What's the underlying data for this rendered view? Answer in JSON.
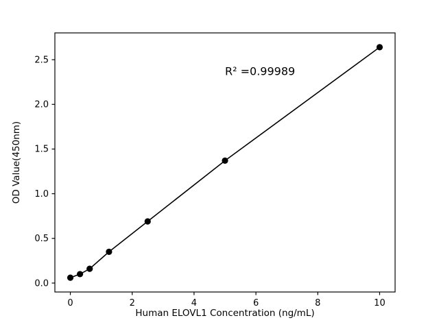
{
  "figure": {
    "background_color": "#ffffff"
  },
  "chart_data": {
    "type": "scatter",
    "title": "",
    "xlabel": "Human ELOVL1 Concentration (ng/mL)",
    "ylabel": "OD Value(450nm)",
    "x": [
      0,
      0.3125,
      0.625,
      1.25,
      2.5,
      5,
      10
    ],
    "y": [
      0.06,
      0.1,
      0.16,
      0.35,
      0.69,
      1.37,
      2.64
    ],
    "line": true,
    "marker": "circle",
    "marker_color": "#000000",
    "line_color": "#000000",
    "axis_color": "#000000",
    "xlim": [
      -0.5,
      10.5
    ],
    "ylim": [
      -0.1,
      2.8
    ],
    "xticks": {
      "values": [
        0,
        2,
        4,
        6,
        8,
        10
      ],
      "labels": [
        "0",
        "2",
        "4",
        "6",
        "8",
        "10"
      ]
    },
    "yticks": {
      "values": [
        0.0,
        0.5,
        1.0,
        1.5,
        2.0,
        2.5
      ],
      "labels": [
        "0.0",
        "0.5",
        "1.0",
        "1.5",
        "2.0",
        "2.5"
      ]
    },
    "grid": false,
    "legend": null,
    "annotation": {
      "text": "R² =0.99989",
      "x": 5.0,
      "y": 2.33
    }
  }
}
